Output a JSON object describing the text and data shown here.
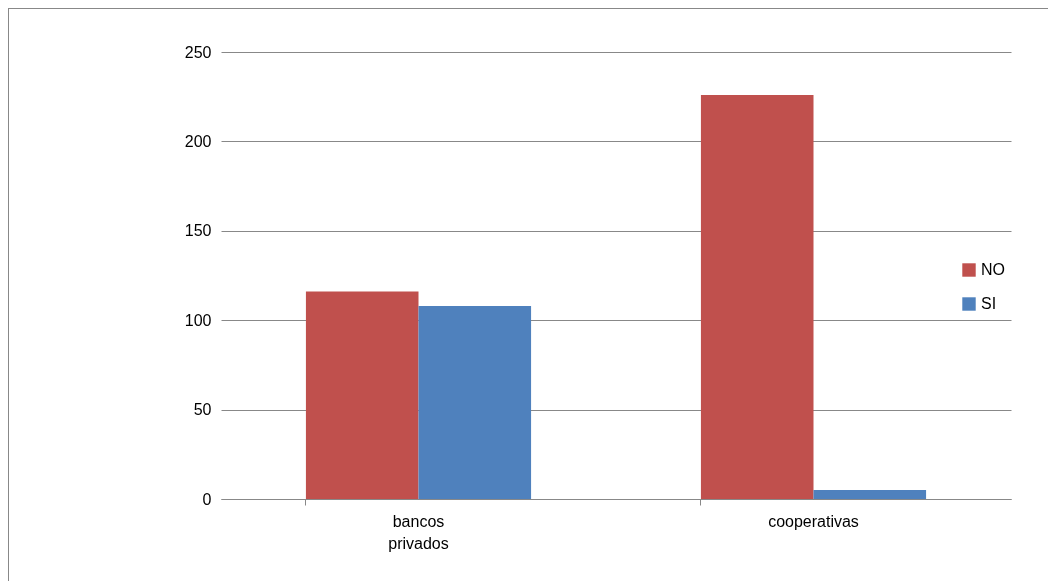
{
  "chart_data": {
    "type": "bar",
    "categories": [
      "bancos privados",
      "cooperativas"
    ],
    "series": [
      {
        "name": "NO",
        "color": "#c0504d",
        "values": [
          116,
          226
        ]
      },
      {
        "name": "SI",
        "color": "#4f81bd",
        "values": [
          108,
          5
        ]
      }
    ],
    "ylim": [
      0,
      250
    ],
    "yticks": [
      0,
      50,
      100,
      150,
      200,
      250
    ],
    "grid": "y",
    "legend": "right"
  }
}
